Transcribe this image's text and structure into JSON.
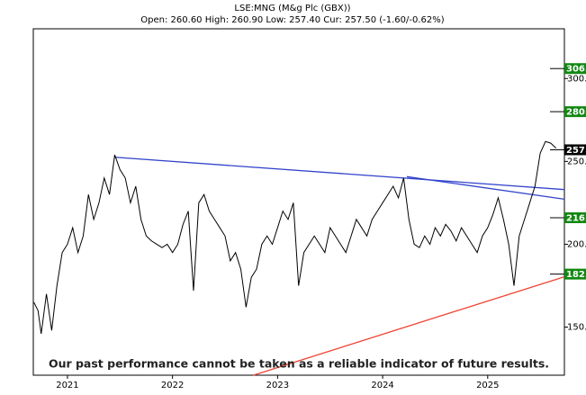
{
  "chart_data": {
    "type": "line",
    "title": "LSE:MNG (M&g Plc (GBX))",
    "subtitle": "Open: 260.60 High: 260.90 Low: 257.40 Cur: 257.50 (-1.60/-0.62%)",
    "footnote": "Our past performance cannot be taken as a reliable indicator of future results.",
    "color": "#000000",
    "x": [
      2020.68,
      2020.72,
      2020.75,
      2020.8,
      2020.85,
      2020.9,
      2020.95,
      2021,
      2021.05,
      2021.1,
      2021.15,
      2021.2,
      2021.25,
      2021.3,
      2021.35,
      2021.4,
      2021.45,
      2021.5,
      2021.55,
      2021.6,
      2021.65,
      2021.7,
      2021.75,
      2021.8,
      2021.85,
      2021.9,
      2021.95,
      2022,
      2022.05,
      2022.1,
      2022.15,
      2022.2,
      2022.25,
      2022.3,
      2022.35,
      2022.4,
      2022.45,
      2022.5,
      2022.55,
      2022.6,
      2022.65,
      2022.7,
      2022.75,
      2022.8,
      2022.85,
      2022.9,
      2022.95,
      2023,
      2023.05,
      2023.1,
      2023.15,
      2023.2,
      2023.25,
      2023.3,
      2023.35,
      2023.4,
      2023.45,
      2023.5,
      2023.55,
      2023.6,
      2023.65,
      2023.7,
      2023.75,
      2023.8,
      2023.85,
      2023.9,
      2023.95,
      2024,
      2024.05,
      2024.1,
      2024.15,
      2024.2,
      2024.25,
      2024.3,
      2024.35,
      2024.4,
      2024.45,
      2024.5,
      2024.55,
      2024.6,
      2024.65,
      2024.7,
      2024.75,
      2024.8,
      2024.85,
      2024.9,
      2024.95,
      2025,
      2025.05,
      2025.1,
      2025.15,
      2025.2,
      2025.25,
      2025.3,
      2025.35,
      2025.4,
      2025.45,
      2025.5,
      2025.55,
      2025.6,
      2025.65
    ],
    "values": [
      165,
      160,
      146,
      170,
      148,
      175,
      195,
      200,
      210,
      195,
      205,
      230,
      215,
      225,
      240,
      230,
      254,
      245,
      240,
      225,
      235,
      215,
      205,
      202,
      200,
      198,
      200,
      195,
      200,
      212,
      220,
      172,
      225,
      230,
      220,
      215,
      210,
      205,
      190,
      195,
      185,
      162,
      180,
      185,
      200,
      205,
      200,
      210,
      220,
      215,
      225,
      175,
      195,
      200,
      205,
      200,
      195,
      210,
      205,
      200,
      195,
      205,
      215,
      210,
      205,
      215,
      220,
      225,
      230,
      235,
      228,
      240,
      215,
      200,
      198,
      205,
      200,
      210,
      205,
      212,
      208,
      202,
      210,
      205,
      200,
      195,
      205,
      210,
      218,
      228,
      215,
      200,
      175,
      205,
      215,
      225,
      235,
      255,
      262,
      261,
      258
    ],
    "xlim": [
      2020.675,
      2025.73
    ],
    "xticks": [
      2021,
      2022,
      2023,
      2024,
      2025
    ],
    "ylim": [
      121,
      330
    ],
    "yticks": [
      {
        "value": 300,
        "label": "300."
      },
      {
        "value": 250,
        "label": "250."
      },
      {
        "value": 200,
        "label": "200."
      },
      {
        "value": 150,
        "label": "150."
      }
    ],
    "trendlines": [
      {
        "x": [
          2021.45,
          2025.73
        ],
        "values": [
          252.5,
          233
        ],
        "color": "#3344cc"
      },
      {
        "x": [
          2024.23,
          2025.73
        ],
        "values": [
          240.8,
          227.2
        ],
        "color": "#3344cc"
      },
      {
        "x": [
          2022.77,
          2025.73
        ],
        "values": [
          121,
          180.4
        ],
        "color": "#ee4433"
      }
    ],
    "levels": [
      {
        "value": 306,
        "label": "306.",
        "color": "#118811"
      },
      {
        "value": 280,
        "label": "280.",
        "color": "#118811"
      },
      {
        "value": 257,
        "label": "257.",
        "color": "#000000"
      },
      {
        "value": 216,
        "label": "216.",
        "color": "#118811"
      },
      {
        "value": 182,
        "label": "182.",
        "color": "#118811"
      }
    ]
  }
}
